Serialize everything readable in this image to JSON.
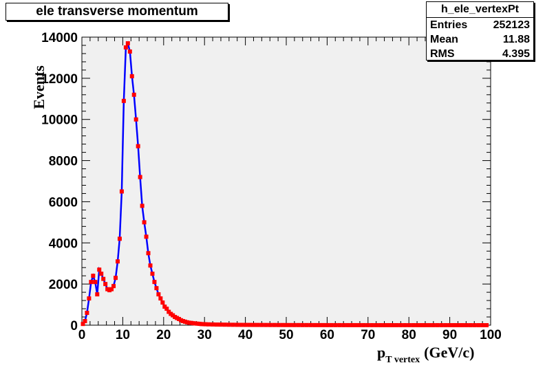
{
  "title": "ele transverse momentum",
  "stats": {
    "name": "h_ele_vertexPt",
    "rows": [
      {
        "label": "Entries",
        "value": "252123"
      },
      {
        "label": "Mean",
        "value": "11.88"
      },
      {
        "label": "RMS",
        "value": "4.395"
      }
    ]
  },
  "colors": {
    "line": "#0000ff",
    "marker": "#ff0000",
    "frame": "#f0f0f0"
  },
  "chart_data": {
    "type": "line",
    "xlabel_main": "p",
    "xlabel_sub": "T vertex",
    "xlabel_unit": "(GeV/c)",
    "ylabel": "Events",
    "xlim": [
      0,
      100
    ],
    "ylim": [
      0,
      14000
    ],
    "xticks": [
      0,
      10,
      20,
      30,
      40,
      50,
      60,
      70,
      80,
      90,
      100
    ],
    "yticks": [
      0,
      2000,
      4000,
      6000,
      8000,
      10000,
      12000,
      14000
    ],
    "grid": false,
    "series": [
      {
        "x": [
          0.25,
          0.75,
          1.25,
          1.75,
          2.25,
          2.75,
          3.25,
          3.75,
          4.25,
          4.75,
          5.25,
          5.75,
          6.25,
          6.75,
          7.25,
          7.75,
          8.25,
          8.75,
          9.25,
          9.75,
          10.25,
          10.75,
          11.25,
          11.75,
          12.25,
          12.75,
          13.25,
          13.75,
          14.25,
          14.75,
          15.25,
          15.75,
          16.25,
          16.75,
          17.25,
          17.75,
          18.25,
          18.75,
          19.25,
          19.75,
          20.25,
          20.75,
          21.25,
          21.75,
          22.25,
          22.75,
          23.25,
          23.75,
          24.25,
          24.75,
          25.25,
          25.75,
          26.25,
          26.75,
          27.25,
          27.75,
          28.25,
          28.75,
          29.25,
          29.75,
          30.25,
          31,
          32,
          33,
          34,
          35,
          36,
          37,
          38,
          39,
          40,
          41,
          42,
          43,
          44,
          45,
          46,
          47,
          48,
          49,
          50,
          51,
          52,
          53,
          54,
          55,
          56,
          57,
          58,
          59,
          60,
          61,
          62,
          63,
          64,
          65,
          66,
          67,
          68,
          69,
          70,
          71,
          72,
          73,
          74,
          75,
          76,
          77,
          78,
          79,
          80,
          81,
          82,
          83,
          84,
          85,
          86,
          87,
          88,
          89,
          90,
          91,
          92,
          93,
          94,
          95,
          96,
          97,
          98,
          99
        ],
        "y": [
          60,
          200,
          600,
          1300,
          2100,
          2400,
          2100,
          1500,
          2700,
          2500,
          2250,
          2000,
          1750,
          1700,
          1750,
          1900,
          2300,
          3100,
          4200,
          6500,
          10900,
          13500,
          13700,
          13300,
          12100,
          11200,
          10000,
          8700,
          7200,
          5800,
          5000,
          4300,
          3500,
          2900,
          2500,
          2100,
          1800,
          1500,
          1300,
          1100,
          900,
          800,
          650,
          550,
          480,
          400,
          350,
          300,
          240,
          200,
          170,
          140,
          120,
          110,
          95,
          85,
          75,
          65,
          55,
          50,
          45,
          40,
          35,
          30,
          28,
          25,
          22,
          20,
          18,
          16,
          15,
          14,
          13,
          12,
          11,
          10,
          9,
          9,
          8,
          8,
          7,
          7,
          6,
          6,
          5,
          5,
          5,
          4,
          4,
          4,
          3,
          3,
          3,
          3,
          2,
          2,
          2,
          2,
          2,
          2,
          2,
          1,
          1,
          1,
          1,
          1,
          1,
          1,
          1,
          1,
          1,
          1,
          1,
          1,
          1,
          1,
          1,
          1,
          1,
          1,
          1,
          1,
          1,
          1,
          1,
          0,
          0,
          0,
          0,
          0
        ]
      }
    ]
  }
}
